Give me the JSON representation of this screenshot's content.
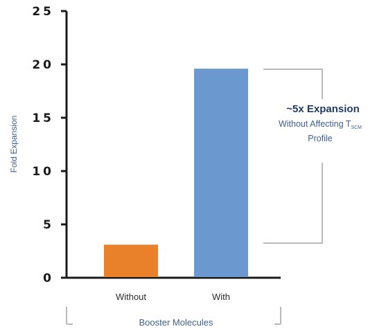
{
  "chart_data": {
    "type": "bar",
    "ylabel": "Fold Expansion",
    "xlabel": "Booster Molecules",
    "categories": [
      "Without",
      "With"
    ],
    "values": [
      3.1,
      19.6
    ],
    "ylim": [
      0,
      25
    ],
    "yticks": [
      "0",
      "5",
      "10",
      "15",
      "20",
      "25"
    ],
    "colors": [
      "#e8812a",
      "#6b98cf"
    ],
    "grid": false,
    "annotation": {
      "title": "~5x Expansion",
      "line2_main": "Without Affecting T",
      "line2_sub": "SCM",
      "line3": "Profile"
    }
  }
}
